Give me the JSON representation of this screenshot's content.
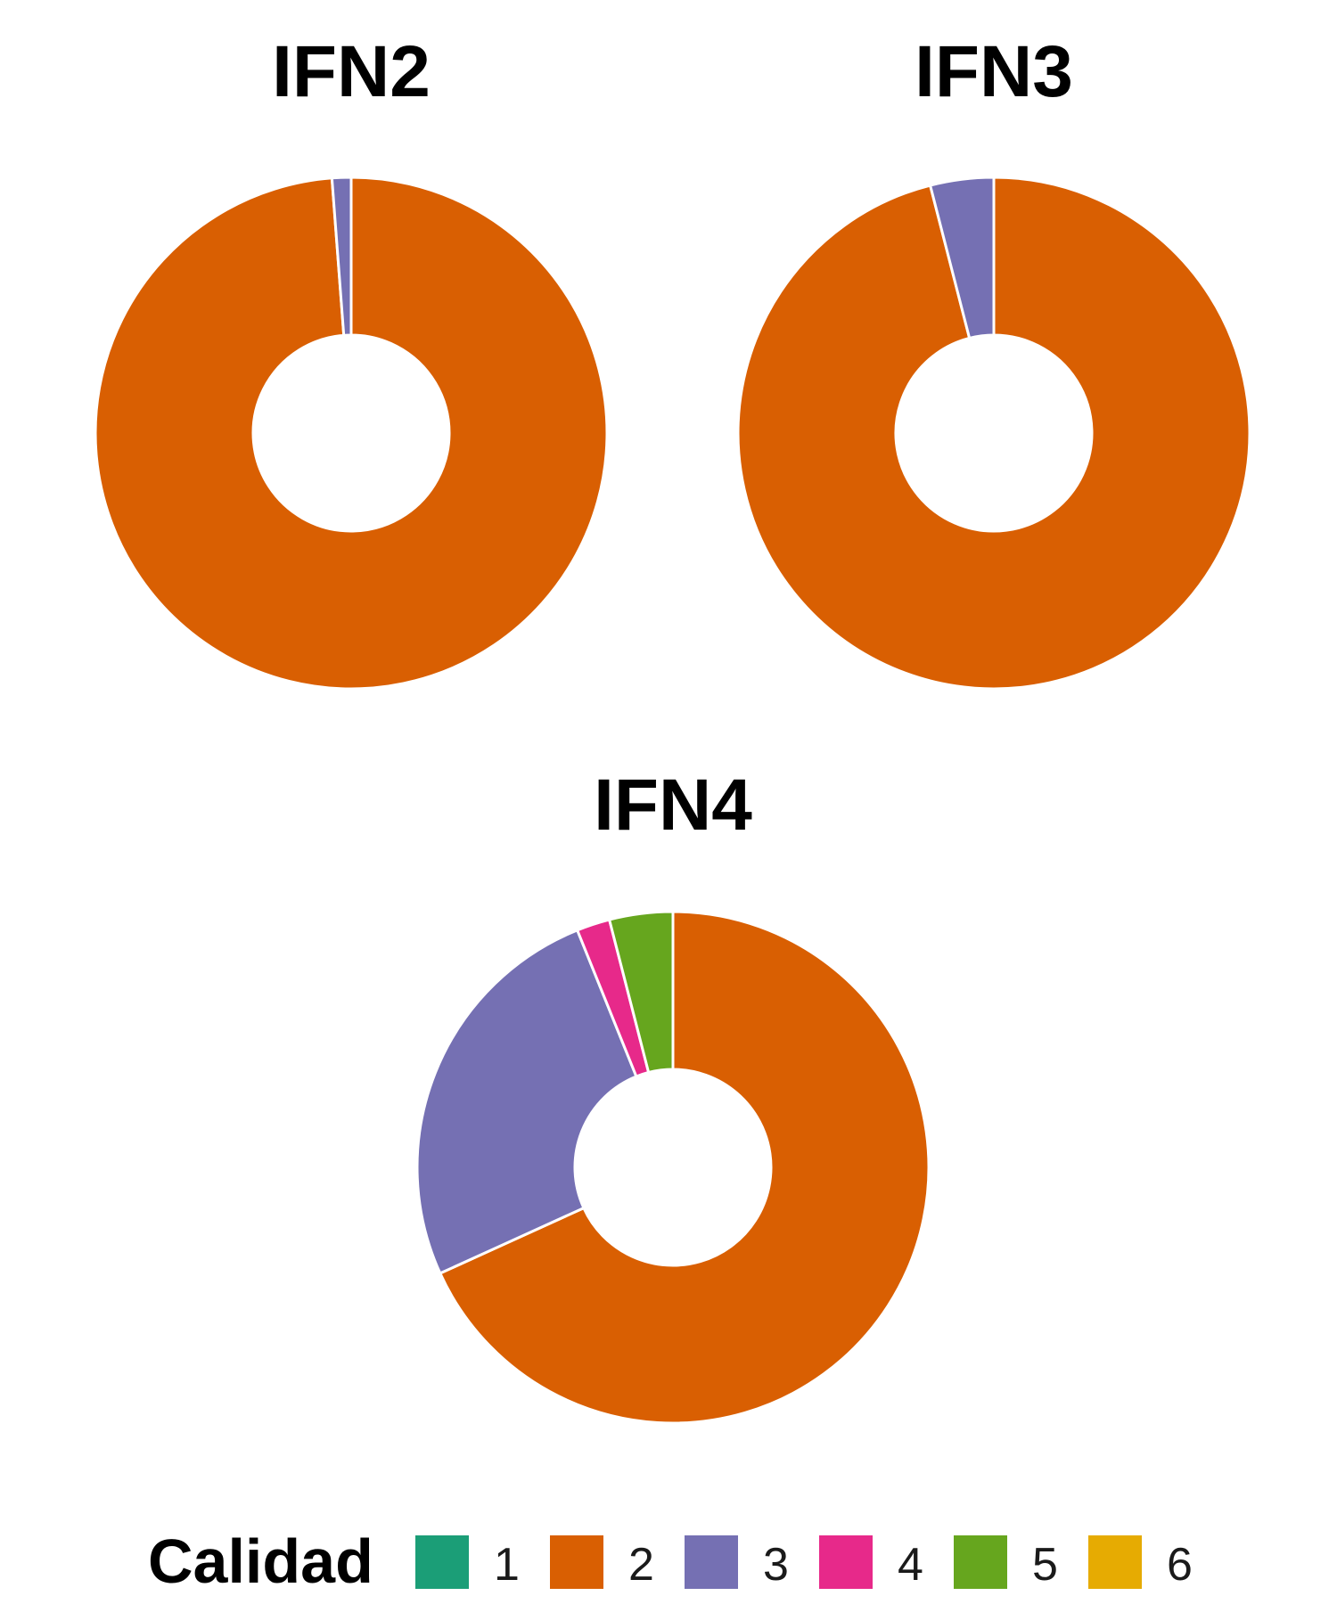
{
  "chart_data": [
    {
      "type": "pie",
      "title": "IFN2",
      "categories": [
        "1",
        "2",
        "3",
        "4",
        "5",
        "6"
      ],
      "values": [
        0,
        98.8,
        1.2,
        0,
        0,
        0
      ]
    },
    {
      "type": "pie",
      "title": "IFN3",
      "categories": [
        "1",
        "2",
        "3",
        "4",
        "5",
        "6"
      ],
      "values": [
        0,
        96.0,
        4.0,
        0,
        0,
        0
      ]
    },
    {
      "type": "pie",
      "title": "IFN4",
      "categories": [
        "1",
        "2",
        "3",
        "4",
        "5",
        "6"
      ],
      "values": [
        0,
        68.2,
        25.7,
        2.1,
        4.0,
        0
      ]
    }
  ],
  "legend": {
    "title": "Calidad",
    "placement": "bottom",
    "items": [
      {
        "label": "1",
        "color": "#1B9E77"
      },
      {
        "label": "2",
        "color": "#D95F02"
      },
      {
        "label": "3",
        "color": "#7570B3"
      },
      {
        "label": "4",
        "color": "#E7298A"
      },
      {
        "label": "5",
        "color": "#66A61E"
      },
      {
        "label": "6",
        "color": "#E6AB02"
      }
    ]
  }
}
